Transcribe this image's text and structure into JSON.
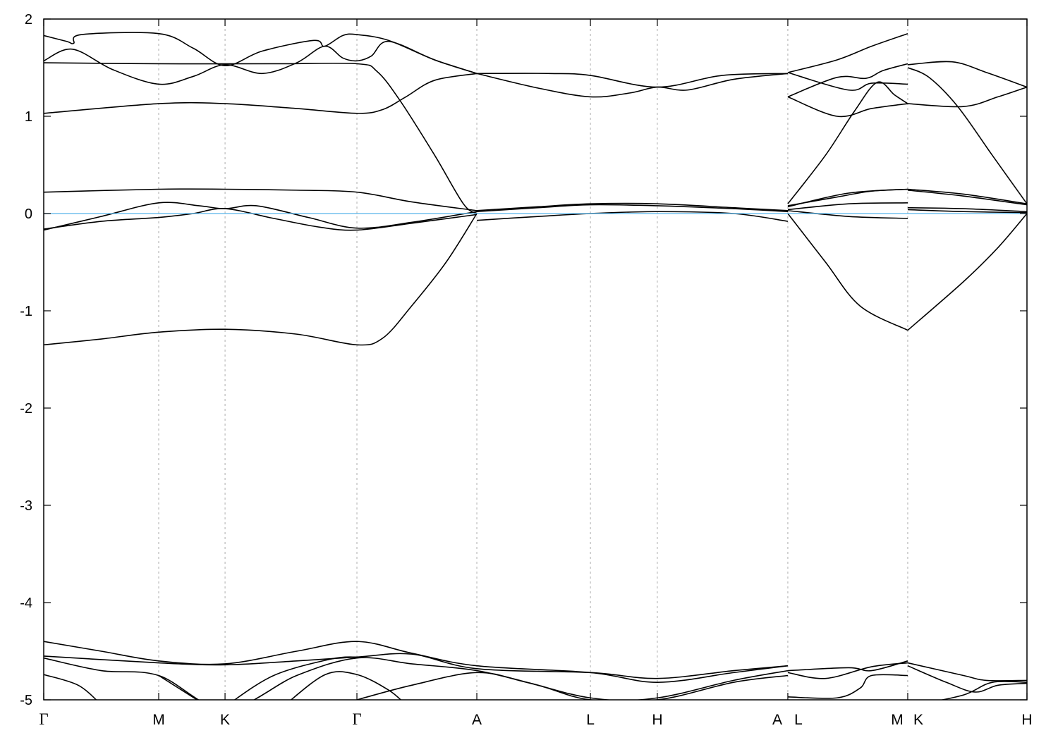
{
  "chart_data": {
    "type": "line",
    "title": "",
    "xlabel": "",
    "ylabel": "",
    "ylim": [
      -5,
      2
    ],
    "xlim": [
      0,
      8.552
    ],
    "yticks": [
      -5,
      -4,
      -3,
      -2,
      -1,
      0,
      1,
      2
    ],
    "grid": "vertical dashed lines at high-symmetry points",
    "fermi_level": {
      "value": 0,
      "color": "#56b4e9"
    },
    "line_color": "#000000",
    "kpoints": [
      {
        "label": "Γ",
        "x": 0
      },
      {
        "label": "M",
        "x": 1.0
      },
      {
        "label": "K",
        "x": 1.577
      },
      {
        "label": "Γ",
        "x": 2.724
      },
      {
        "label": "A",
        "x": 3.767
      },
      {
        "label": "L",
        "x": 4.755
      },
      {
        "label": "H",
        "x": 5.337
      },
      {
        "label": "A",
        "x": 6.472
      },
      {
        "label": "L",
        "x": 6.472
      },
      {
        "label": "M",
        "x": 7.515
      },
      {
        "label": "K",
        "x": 7.515
      },
      {
        "label": "H",
        "x": 8.552
      }
    ],
    "bands": [
      [
        [
          0,
          -1.35
        ],
        [
          0.5,
          -1.29
        ],
        [
          1.0,
          -1.22
        ],
        [
          1.577,
          -1.19
        ],
        [
          2.2,
          -1.24
        ],
        [
          2.724,
          -1.35
        ],
        [
          2.95,
          -1.28
        ],
        [
          3.2,
          -0.95
        ],
        [
          3.5,
          -0.5
        ],
        [
          3.767,
          0.0
        ]
      ],
      [
        [
          0,
          -0.17
        ],
        [
          0.5,
          -0.03
        ],
        [
          1.0,
          0.11
        ],
        [
          1.35,
          0.08
        ],
        [
          1.577,
          0.05
        ],
        [
          1.85,
          0.08
        ],
        [
          2.3,
          -0.04
        ],
        [
          2.724,
          -0.15
        ],
        [
          3.2,
          -0.09
        ],
        [
          3.767,
          0.02
        ]
      ],
      [
        [
          0,
          -0.16
        ],
        [
          0.5,
          -0.08
        ],
        [
          1.0,
          -0.04
        ],
        [
          1.3,
          0.0
        ],
        [
          1.577,
          0.05
        ],
        [
          2.0,
          -0.05
        ],
        [
          2.4,
          -0.14
        ],
        [
          2.724,
          -0.17
        ],
        [
          3.2,
          -0.1
        ],
        [
          3.767,
          -0.01
        ]
      ],
      [
        [
          0,
          0.22
        ],
        [
          1.0,
          0.25
        ],
        [
          1.577,
          0.25
        ],
        [
          2.2,
          0.24
        ],
        [
          2.724,
          0.22
        ],
        [
          3.2,
          0.12
        ],
        [
          3.767,
          0.03
        ]
      ],
      [
        [
          0,
          1.03
        ],
        [
          1.0,
          1.13
        ],
        [
          1.577,
          1.13
        ],
        [
          2.2,
          1.08
        ],
        [
          2.724,
          1.03
        ],
        [
          2.95,
          1.07
        ],
        [
          3.15,
          1.2
        ],
        [
          3.4,
          1.37
        ],
        [
          3.767,
          1.44
        ]
      ],
      [
        [
          0,
          1.55
        ],
        [
          1.0,
          1.54
        ],
        [
          2.0,
          1.54
        ],
        [
          2.724,
          1.54
        ],
        [
          2.9,
          1.46
        ],
        [
          3.1,
          1.16
        ],
        [
          3.4,
          0.6
        ],
        [
          3.65,
          0.1
        ],
        [
          3.767,
          0.0
        ]
      ],
      [
        [
          0,
          1.57
        ],
        [
          0.25,
          1.69
        ],
        [
          0.6,
          1.48
        ],
        [
          1.0,
          1.33
        ],
        [
          1.3,
          1.41
        ],
        [
          1.577,
          1.53
        ],
        [
          1.9,
          1.44
        ],
        [
          2.2,
          1.55
        ],
        [
          2.442,
          1.72
        ],
        [
          2.6,
          1.6
        ],
        [
          2.724,
          1.57
        ],
        [
          2.85,
          1.62
        ],
        [
          3.0,
          1.77
        ],
        [
          3.4,
          1.58
        ],
        [
          3.767,
          1.44
        ]
      ],
      [
        [
          0,
          1.83
        ],
        [
          0.2,
          1.77
        ],
        [
          0.26,
          1.75
        ],
        [
          0.33,
          1.84
        ],
        [
          1.0,
          1.85
        ],
        [
          1.3,
          1.7
        ],
        [
          1.577,
          1.52
        ],
        [
          1.9,
          1.67
        ],
        [
          2.35,
          1.78
        ],
        [
          2.442,
          1.72
        ],
        [
          2.6,
          1.83
        ],
        [
          2.724,
          1.84
        ],
        [
          3.0,
          1.78
        ],
        [
          3.4,
          1.58
        ],
        [
          3.767,
          1.44
        ]
      ],
      [
        [
          3.767,
          1.44
        ],
        [
          4.4,
          1.44
        ],
        [
          4.755,
          1.42
        ],
        [
          5.337,
          1.3
        ],
        [
          5.9,
          1.42
        ],
        [
          6.472,
          1.44
        ]
      ],
      [
        [
          3.767,
          1.44
        ],
        [
          4.3,
          1.29
        ],
        [
          4.755,
          1.2
        ],
        [
          5.1,
          1.24
        ],
        [
          5.337,
          1.3
        ],
        [
          5.6,
          1.27
        ],
        [
          6.0,
          1.38
        ],
        [
          6.472,
          1.44
        ]
      ],
      [
        [
          3.767,
          0.03
        ],
        [
          4.3,
          0.07
        ],
        [
          4.755,
          0.1
        ],
        [
          5.337,
          0.1
        ],
        [
          6.0,
          0.06
        ],
        [
          6.472,
          0.03
        ]
      ],
      [
        [
          3.767,
          0.02
        ],
        [
          4.3,
          0.06
        ],
        [
          4.755,
          0.09
        ],
        [
          5.337,
          0.08
        ],
        [
          6.0,
          0.05
        ],
        [
          6.472,
          0.02
        ]
      ],
      [
        [
          3.767,
          -0.07
        ],
        [
          4.3,
          -0.03
        ],
        [
          4.755,
          0.0
        ],
        [
          5.337,
          0.02
        ],
        [
          6.0,
          0.0
        ],
        [
          6.472,
          -0.08
        ]
      ],
      [
        [
          6.472,
          1.45
        ],
        [
          6.9,
          1.58
        ],
        [
          7.2,
          1.72
        ],
        [
          7.515,
          1.85
        ]
      ],
      [
        [
          6.472,
          1.45
        ],
        [
          7.0,
          1.27
        ],
        [
          7.2,
          1.34
        ],
        [
          7.515,
          1.33
        ]
      ],
      [
        [
          6.472,
          1.2
        ],
        [
          6.9,
          1.4
        ],
        [
          7.15,
          1.39
        ],
        [
          7.3,
          1.47
        ],
        [
          7.515,
          1.54
        ]
      ],
      [
        [
          6.472,
          1.2
        ],
        [
          6.9,
          1.0
        ],
        [
          7.2,
          1.08
        ],
        [
          7.515,
          1.13
        ]
      ],
      [
        [
          6.472,
          0.1
        ],
        [
          6.8,
          0.6
        ],
        [
          7.05,
          1.05
        ],
        [
          7.25,
          1.35
        ],
        [
          7.4,
          1.22
        ],
        [
          7.515,
          1.13
        ]
      ],
      [
        [
          6.472,
          0.08
        ],
        [
          6.9,
          0.17
        ],
        [
          7.2,
          0.23
        ],
        [
          7.515,
          0.25
        ]
      ],
      [
        [
          6.472,
          0.07
        ],
        [
          7.0,
          0.21
        ],
        [
          7.515,
          0.25
        ]
      ],
      [
        [
          6.472,
          0.04
        ],
        [
          7.0,
          0.1
        ],
        [
          7.515,
          0.11
        ]
      ],
      [
        [
          6.472,
          0.03
        ],
        [
          7.0,
          -0.03
        ],
        [
          7.515,
          -0.05
        ]
      ],
      [
        [
          6.472,
          0.0
        ],
        [
          6.8,
          -0.5
        ],
        [
          7.1,
          -0.95
        ],
        [
          7.515,
          -1.2
        ]
      ],
      [
        [
          7.515,
          1.53
        ],
        [
          7.9,
          1.56
        ],
        [
          8.2,
          1.45
        ],
        [
          8.552,
          1.3
        ]
      ],
      [
        [
          7.515,
          1.13
        ],
        [
          8.0,
          1.1
        ],
        [
          8.3,
          1.2
        ],
        [
          8.552,
          1.3
        ]
      ],
      [
        [
          7.515,
          1.5
        ],
        [
          7.7,
          1.4
        ],
        [
          7.95,
          1.1
        ],
        [
          8.25,
          0.6
        ],
        [
          8.552,
          0.1
        ]
      ],
      [
        [
          7.515,
          0.25
        ],
        [
          8.0,
          0.2
        ],
        [
          8.552,
          0.1
        ]
      ],
      [
        [
          7.515,
          0.24
        ],
        [
          8.0,
          0.18
        ],
        [
          8.552,
          0.09
        ]
      ],
      [
        [
          7.515,
          0.06
        ],
        [
          8.0,
          0.05
        ],
        [
          8.552,
          0.02
        ]
      ],
      [
        [
          7.515,
          0.04
        ],
        [
          8.0,
          0.02
        ],
        [
          8.552,
          0.01
        ]
      ],
      [
        [
          7.515,
          -1.2
        ],
        [
          8.0,
          -0.7
        ],
        [
          8.3,
          -0.35
        ],
        [
          8.552,
          0.0
        ]
      ],
      [
        [
          0,
          -4.4
        ],
        [
          0.5,
          -4.5
        ],
        [
          1.0,
          -4.6
        ],
        [
          1.577,
          -4.63
        ],
        [
          2.2,
          -4.5
        ],
        [
          2.724,
          -4.4
        ],
        [
          3.2,
          -4.52
        ],
        [
          3.767,
          -4.65
        ],
        [
          4.755,
          -4.72
        ],
        [
          5.337,
          -4.82
        ],
        [
          6.0,
          -4.72
        ],
        [
          6.472,
          -4.65
        ]
      ],
      [
        [
          0,
          -4.55
        ],
        [
          1.0,
          -4.62
        ],
        [
          1.577,
          -4.64
        ],
        [
          2.2,
          -4.6
        ],
        [
          2.724,
          -4.56
        ],
        [
          3.2,
          -4.53
        ],
        [
          3.767,
          -4.68
        ],
        [
          4.755,
          -4.72
        ],
        [
          5.337,
          -4.78
        ],
        [
          6.0,
          -4.7
        ],
        [
          6.472,
          -4.65
        ]
      ],
      [
        [
          0,
          -4.57
        ],
        [
          0.5,
          -4.7
        ],
        [
          1.0,
          -4.75
        ],
        [
          1.577,
          -5.1
        ],
        [
          2.2,
          -4.75
        ],
        [
          2.724,
          -4.57
        ],
        [
          3.2,
          -4.63
        ],
        [
          3.767,
          -4.7
        ],
        [
          4.3,
          -4.85
        ],
        [
          4.755,
          -5.0
        ],
        [
          5.337,
          -4.98
        ],
        [
          6.0,
          -4.8
        ],
        [
          6.472,
          -4.7
        ]
      ],
      [
        [
          0,
          -4.74
        ],
        [
          0.3,
          -4.85
        ],
        [
          0.5,
          -5.05
        ]
      ],
      [
        [
          2.1,
          -5.05
        ],
        [
          2.45,
          -4.74
        ],
        [
          2.724,
          -4.74
        ],
        [
          3.0,
          -4.9
        ],
        [
          3.15,
          -5.05
        ]
      ],
      [
        [
          2.724,
          -5.0
        ],
        [
          3.2,
          -4.85
        ],
        [
          3.767,
          -4.72
        ],
        [
          4.2,
          -4.82
        ],
        [
          4.755,
          -4.98
        ],
        [
          5.337,
          -5.0
        ],
        [
          6.0,
          -4.82
        ],
        [
          6.472,
          -4.75
        ]
      ],
      [
        [
          1.0,
          -4.75
        ],
        [
          1.4,
          -5.05
        ]
      ],
      [
        [
          1.6,
          -5.05
        ],
        [
          2.0,
          -4.75
        ],
        [
          2.5,
          -4.58
        ],
        [
          2.724,
          -4.56
        ]
      ],
      [
        [
          6.472,
          -4.7
        ],
        [
          7.0,
          -4.67
        ],
        [
          7.2,
          -4.7
        ],
        [
          7.515,
          -4.6
        ]
      ],
      [
        [
          6.472,
          -4.72
        ],
        [
          6.8,
          -4.78
        ],
        [
          7.2,
          -4.66
        ],
        [
          7.515,
          -4.62
        ]
      ],
      [
        [
          6.472,
          -4.97
        ],
        [
          6.9,
          -4.98
        ],
        [
          7.1,
          -4.88
        ],
        [
          7.2,
          -4.75
        ],
        [
          7.515,
          -4.75
        ]
      ],
      [
        [
          7.515,
          -4.62
        ],
        [
          8.0,
          -4.75
        ],
        [
          8.2,
          -4.8
        ],
        [
          8.552,
          -4.8
        ]
      ],
      [
        [
          7.515,
          -4.65
        ],
        [
          7.85,
          -4.82
        ],
        [
          8.1,
          -4.92
        ],
        [
          8.3,
          -4.85
        ],
        [
          8.552,
          -4.83
        ]
      ],
      [
        [
          7.6,
          -5.05
        ],
        [
          8.0,
          -4.95
        ],
        [
          8.25,
          -4.82
        ],
        [
          8.552,
          -4.82
        ]
      ]
    ]
  }
}
